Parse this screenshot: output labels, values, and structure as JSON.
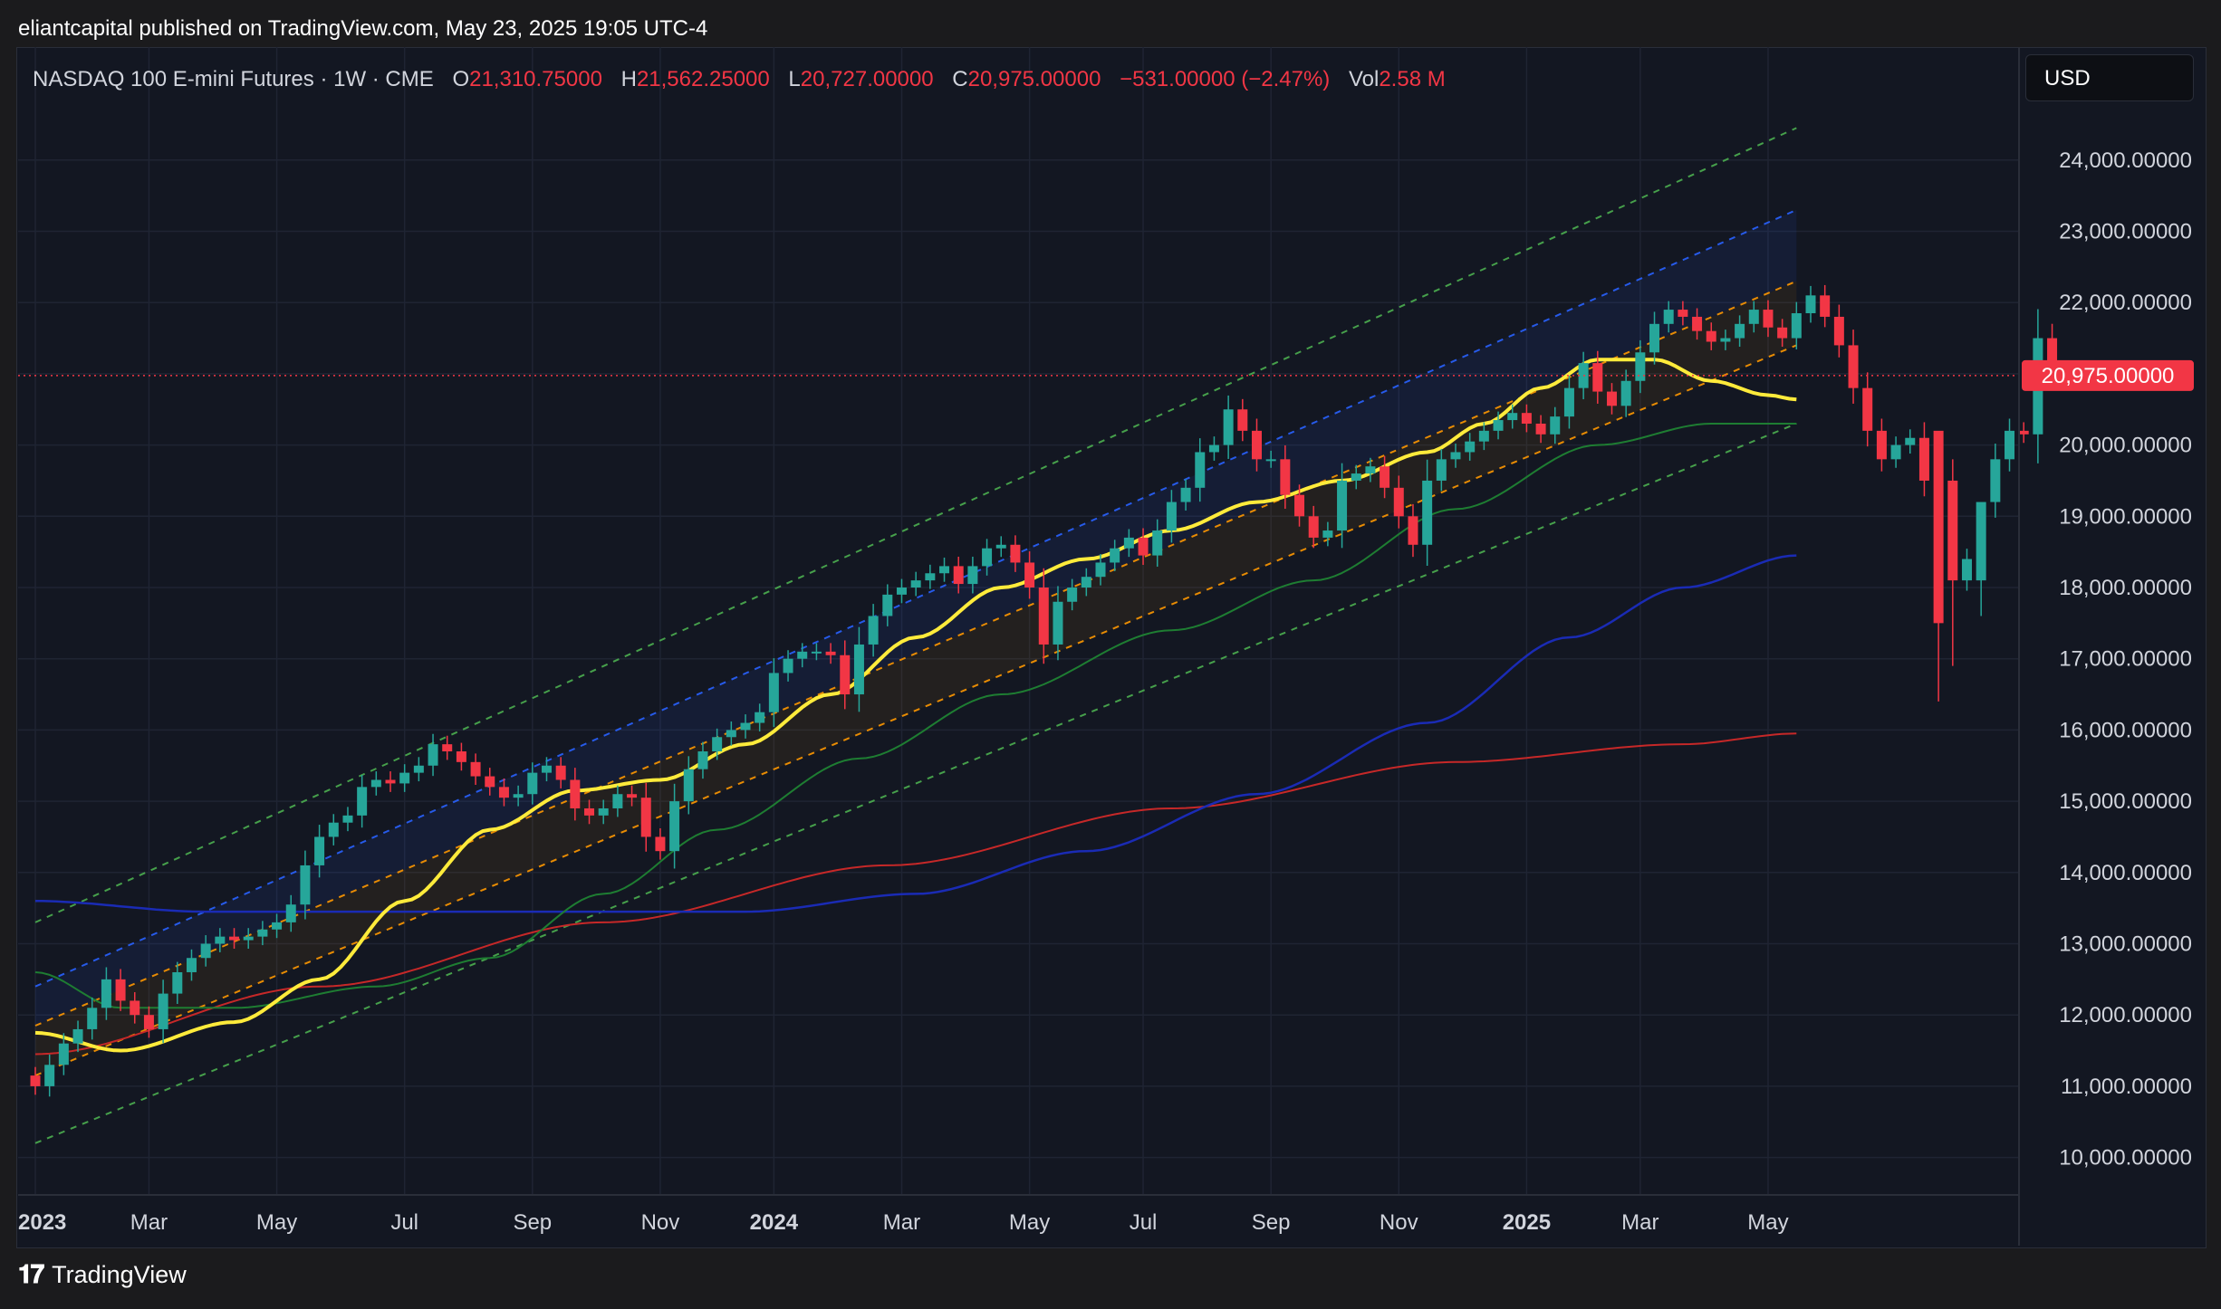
{
  "header": {
    "published": "eliantcapital published on TradingView.com, May 23, 2025 19:05 UTC-4"
  },
  "legend": {
    "symbol": "NASDAQ 100 E-mini Futures · 1W · CME",
    "o_label": "O",
    "o_value": "21,310.75000",
    "h_label": "H",
    "h_value": "21,562.25000",
    "l_label": "L",
    "l_value": "20,727.00000",
    "c_label": "C",
    "c_value": "20,975.00000",
    "change": "−531.00000 (−2.47%)",
    "vol_label": "Vol",
    "vol_value": "2.58 M"
  },
  "currency_button": "USD",
  "footer": {
    "brand": "TradingView"
  },
  "colors": {
    "up": "#26a69a",
    "down": "#f23645",
    "background": "#131722",
    "ma_yellow": "#ffeb3b",
    "ma_green": "#1e7d32",
    "ma_blue": "#1a2bb5",
    "ma_red": "#c62828",
    "channel_green": "#4caf50",
    "channel_blue": "#2962ff",
    "channel_orange": "#ff9800"
  },
  "chart_data": {
    "type": "candlestick",
    "timeframe": "1W",
    "ylim": [
      9700,
      24700
    ],
    "y_ticks": [
      10000,
      11000,
      12000,
      13000,
      14000,
      15000,
      16000,
      17000,
      18000,
      19000,
      20000,
      21000,
      22000,
      23000,
      24000
    ],
    "y_tick_labels": [
      "10,000.00000",
      "11,000.00000",
      "12,000.00000",
      "13,000.00000",
      "14,000.00000",
      "15,000.00000",
      "16,000.00000",
      "17,000.00000",
      "18,000.00000",
      "19,000.00000",
      "20,000.00000",
      "21,000.00000",
      "22,000.00000",
      "23,000.00000",
      "24,000.00000"
    ],
    "x_ticks": [
      {
        "week": 0,
        "label": "2023",
        "bold": true
      },
      {
        "week": 8,
        "label": "Mar",
        "bold": false
      },
      {
        "week": 17,
        "label": "May",
        "bold": false
      },
      {
        "week": 26,
        "label": "Jul",
        "bold": false
      },
      {
        "week": 35,
        "label": "Sep",
        "bold": false
      },
      {
        "week": 44,
        "label": "Nov",
        "bold": false
      },
      {
        "week": 52,
        "label": "2024",
        "bold": true
      },
      {
        "week": 61,
        "label": "Mar",
        "bold": false
      },
      {
        "week": 70,
        "label": "May",
        "bold": false
      },
      {
        "week": 78,
        "label": "Jul",
        "bold": false
      },
      {
        "week": 87,
        "label": "Sep",
        "bold": false
      },
      {
        "week": 96,
        "label": "Nov",
        "bold": false
      },
      {
        "week": 105,
        "label": "2025",
        "bold": true
      },
      {
        "week": 113,
        "label": "Mar",
        "bold": false
      },
      {
        "week": 122,
        "label": "May",
        "bold": false
      }
    ],
    "last_price": 20975,
    "last_price_label": "20,975.00000",
    "close": [
      11000,
      11300,
      11600,
      11800,
      12100,
      12500,
      12200,
      12000,
      11800,
      12300,
      12600,
      12800,
      13000,
      13100,
      13050,
      13100,
      13200,
      13300,
      13550,
      14100,
      14500,
      14700,
      14800,
      15200,
      15300,
      15250,
      15400,
      15500,
      15800,
      15700,
      15550,
      15350,
      15200,
      15050,
      15100,
      15400,
      15500,
      15300,
      14900,
      14800,
      14900,
      15100,
      15050,
      14500,
      14300,
      15000,
      15450,
      15700,
      15900,
      16000,
      16100,
      16250,
      16800,
      17000,
      17100,
      17100,
      17050,
      16500,
      17200,
      17600,
      17900,
      18000,
      18100,
      18200,
      18300,
      18050,
      18300,
      18550,
      18600,
      18350,
      18000,
      17200,
      17800,
      18000,
      18150,
      18350,
      18550,
      18700,
      18450,
      18800,
      19200,
      19400,
      19900,
      20000,
      20500,
      20200,
      19800,
      19800,
      19300,
      19000,
      18700,
      18800,
      19500,
      19600,
      19700,
      19400,
      19000,
      18600,
      19500,
      19800,
      19900,
      20050,
      20200,
      20350,
      20450,
      20300,
      20150,
      20400,
      20800,
      21150,
      20750,
      20550,
      20900,
      21300,
      21700,
      21900,
      21800,
      21600,
      21450,
      21500,
      21700,
      21900,
      21650,
      21500,
      21850,
      22100,
      21800,
      21400,
      20800,
      20200,
      19800,
      20000,
      20100,
      19500,
      17500,
      18100,
      18400,
      19200,
      19800,
      20200,
      20150,
      21500,
      20975
    ],
    "ma_sources": {
      "yellow": [
        [
          0,
          11750
        ],
        [
          6,
          11500
        ],
        [
          14,
          11900
        ],
        [
          20,
          12500
        ],
        [
          26,
          13600
        ],
        [
          32,
          14600
        ],
        [
          38,
          15150
        ],
        [
          44,
          15300
        ],
        [
          50,
          15800
        ],
        [
          56,
          16500
        ],
        [
          62,
          17300
        ],
        [
          68,
          18000
        ],
        [
          74,
          18400
        ],
        [
          80,
          18800
        ],
        [
          86,
          19200
        ],
        [
          92,
          19500
        ],
        [
          98,
          19900
        ],
        [
          102,
          20300
        ],
        [
          106,
          20800
        ],
        [
          110,
          21200
        ],
        [
          114,
          21200
        ],
        [
          118,
          20900
        ],
        [
          122,
          20700
        ],
        [
          124,
          20640
        ]
      ],
      "green": [
        [
          0,
          12600
        ],
        [
          6,
          12100
        ],
        [
          14,
          12100
        ],
        [
          24,
          12400
        ],
        [
          32,
          12800
        ],
        [
          40,
          13700
        ],
        [
          48,
          14600
        ],
        [
          58,
          15600
        ],
        [
          68,
          16500
        ],
        [
          80,
          17400
        ],
        [
          90,
          18100
        ],
        [
          100,
          19100
        ],
        [
          110,
          20000
        ],
        [
          118,
          20300
        ],
        [
          124,
          20300
        ]
      ],
      "blue": [
        [
          0,
          13600
        ],
        [
          12,
          13450
        ],
        [
          30,
          13450
        ],
        [
          50,
          13450
        ],
        [
          62,
          13700
        ],
        [
          74,
          14300
        ],
        [
          86,
          15100
        ],
        [
          98,
          16100
        ],
        [
          108,
          17300
        ],
        [
          116,
          18000
        ],
        [
          124,
          18450
        ]
      ],
      "red": [
        [
          0,
          11450
        ],
        [
          20,
          12400
        ],
        [
          40,
          13300
        ],
        [
          60,
          14100
        ],
        [
          80,
          14900
        ],
        [
          100,
          15550
        ],
        [
          116,
          15800
        ],
        [
          124,
          15950
        ]
      ]
    },
    "channel_lines": [
      {
        "color": "green",
        "dash": true,
        "from": [
          0,
          13300
        ],
        "to": [
          124,
          24450
        ]
      },
      {
        "color": "blue",
        "dash": true,
        "from": [
          0,
          12400
        ],
        "to": [
          124,
          23300
        ]
      },
      {
        "color": "orange",
        "dash": true,
        "from": [
          0,
          11850
        ],
        "to": [
          124,
          22300
        ]
      },
      {
        "color": "orange",
        "dash": true,
        "from": [
          0,
          11150
        ],
        "to": [
          124,
          21400
        ]
      },
      {
        "color": "green",
        "dash": true,
        "from": [
          0,
          10200
        ],
        "to": [
          124,
          20300
        ]
      }
    ]
  }
}
